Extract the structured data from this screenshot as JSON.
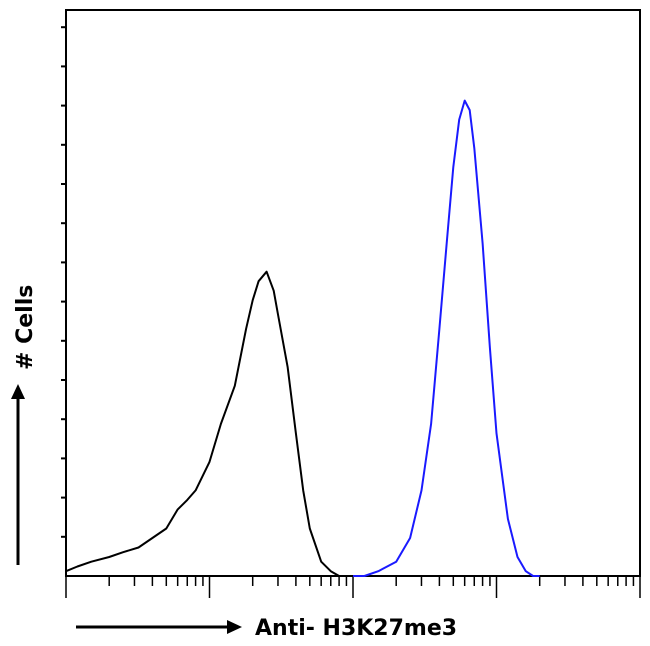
{
  "chart_data": {
    "type": "line",
    "title": "",
    "xlabel": "Anti- H3K27me3",
    "ylabel": "# Cells",
    "x_scale": "log",
    "xlim": [
      1,
      10000
    ],
    "ylim": [
      0,
      100
    ],
    "grid": false,
    "legend": "none",
    "series": [
      {
        "color": "#000000",
        "x": [
          1.0,
          1.2,
          1.5,
          2.0,
          2.5,
          3.2,
          4.0,
          5.0,
          6.0,
          7.0,
          8.0,
          10.0,
          12.0,
          15.0,
          18.0,
          20.0,
          22.0,
          25.0,
          28.0,
          30.0,
          35.0,
          40.0,
          45.0,
          50.0,
          60.0,
          70.0,
          80.0,
          100.0
        ],
        "y": [
          1,
          2,
          3,
          4,
          5,
          6,
          8,
          10,
          14,
          16,
          18,
          24,
          32,
          40,
          52,
          58,
          62,
          64,
          60,
          55,
          44,
          30,
          18,
          10,
          3,
          1,
          0,
          0
        ]
      },
      {
        "color": "#1a1aff",
        "x": [
          100.0,
          120.0,
          150.0,
          200.0,
          250.0,
          300.0,
          350.0,
          400.0,
          450.0,
          500.0,
          550.0,
          600.0,
          650.0,
          700.0,
          800.0,
          900.0,
          1000.0,
          1200.0,
          1400.0,
          1600.0,
          1800.0,
          2000.0
        ],
        "y": [
          0,
          0,
          1,
          3,
          8,
          18,
          32,
          52,
          70,
          86,
          96,
          100,
          98,
          90,
          70,
          48,
          30,
          12,
          4,
          1,
          0,
          0
        ]
      }
    ]
  }
}
